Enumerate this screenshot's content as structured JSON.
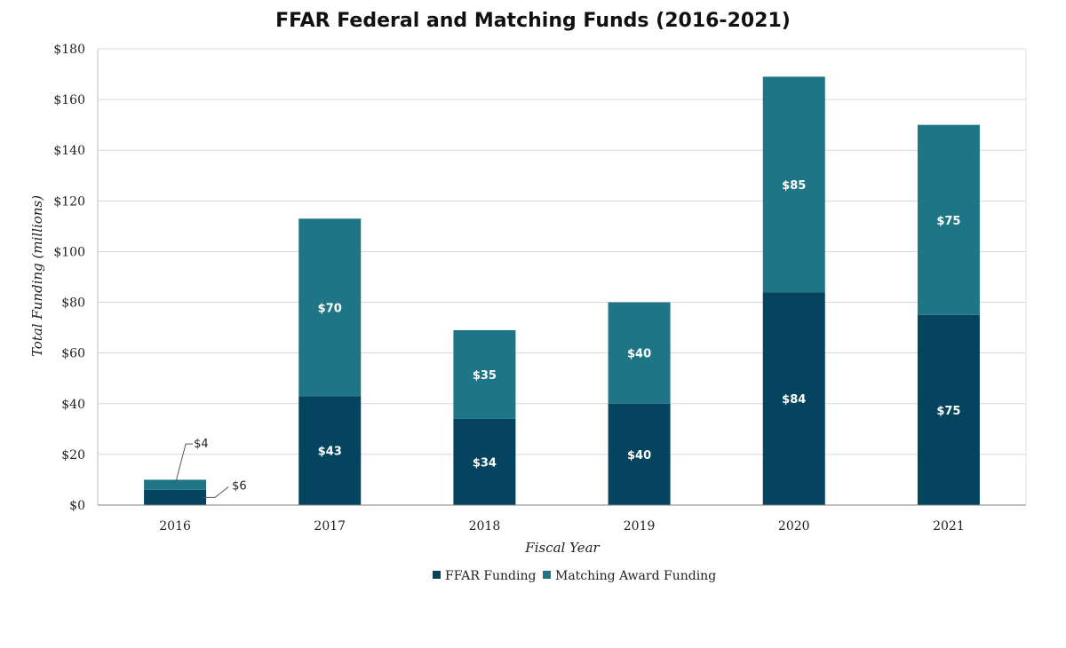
{
  "chart_data": {
    "type": "bar",
    "stacked": true,
    "title": "FFAR Federal and Matching Funds (2016-2021)",
    "xlabel": "Fiscal Year",
    "ylabel": "Total Funding (millions)",
    "categories": [
      "2016",
      "2017",
      "2018",
      "2019",
      "2020",
      "2021"
    ],
    "series": [
      {
        "name": "FFAR Funding",
        "color": "#05445e",
        "values": [
          6,
          43,
          34,
          40,
          84,
          75
        ],
        "labels": [
          "$6",
          "$43",
          "$34",
          "$40",
          "$84",
          "$75"
        ]
      },
      {
        "name": "Matching Award Funding",
        "color": "#1e7585",
        "values": [
          4,
          70,
          35,
          40,
          85,
          75
        ],
        "labels": [
          "$4",
          "$70",
          "$35",
          "$40",
          "$85",
          "$75"
        ]
      }
    ],
    "ylim": [
      0,
      180
    ],
    "yticks": [
      0,
      20,
      40,
      60,
      80,
      100,
      120,
      140,
      160,
      180
    ],
    "ytick_labels": [
      "$0",
      "$20",
      "$40",
      "$60",
      "$80",
      "$100",
      "$120",
      "$140",
      "$160",
      "$180"
    ],
    "grid": true,
    "legend_position": "bottom-center"
  }
}
